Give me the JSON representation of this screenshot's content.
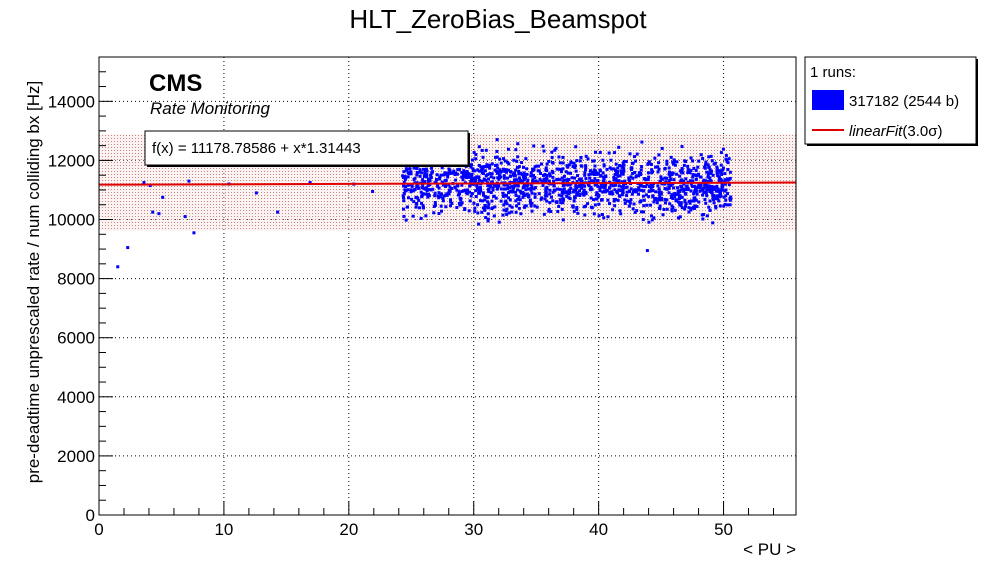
{
  "chart_data": {
    "type": "scatter",
    "title": "HLT_ZeroBias_Beamspot",
    "xlabel": "< PU >",
    "ylabel": "pre-deadtime unprescaled rate / num colliding bx [Hz]",
    "xlim": [
      0,
      55.8
    ],
    "ylim": [
      0,
      15500
    ],
    "x_ticks": [
      0,
      10,
      20,
      30,
      40,
      50
    ],
    "y_ticks": [
      0,
      2000,
      4000,
      6000,
      8000,
      10000,
      12000,
      14000
    ],
    "grid": true,
    "legend_position": "top-right, outside plot",
    "colors": {
      "points": "#0000ff",
      "fit": "#e00000",
      "band": "#d4a0a0"
    },
    "branding": {
      "experiment": "CMS",
      "subtitle": "Rate Monitoring"
    },
    "fit": {
      "label": "f(x) = 11178.78586 + x*1.31443",
      "intercept": 11178.78586,
      "slope": 1.31443,
      "band_low": 9620,
      "band_high": 12880
    },
    "legend": {
      "header": "1 runs:",
      "entries": [
        {
          "label": "317182 (2544 b)",
          "kind": "fill-box"
        },
        {
          "label_main": "linearFit",
          "label_suffix": "(3.0σ)",
          "kind": "line"
        }
      ]
    },
    "series": [
      {
        "name": "317182 (2544 b)",
        "isolated_points": [
          [
            1.5,
            8400
          ],
          [
            2.3,
            9050
          ],
          [
            3.6,
            11250
          ],
          [
            4.1,
            11150
          ],
          [
            4.3,
            10250
          ],
          [
            4.8,
            10200
          ],
          [
            5.1,
            10750
          ],
          [
            6.9,
            10100
          ],
          [
            7.2,
            11300
          ],
          [
            7.6,
            9550
          ],
          [
            10.4,
            11200
          ],
          [
            12.6,
            10900
          ],
          [
            14.3,
            10250
          ],
          [
            16.9,
            11250
          ],
          [
            20.4,
            11200
          ],
          [
            21.9,
            10950
          ],
          [
            43.9,
            8950
          ]
        ],
        "dense_region": {
          "x_range": [
            24.3,
            50.6
          ],
          "y_center": 11200,
          "y_spread": 1600,
          "approx_points": 1500
        }
      }
    ]
  }
}
